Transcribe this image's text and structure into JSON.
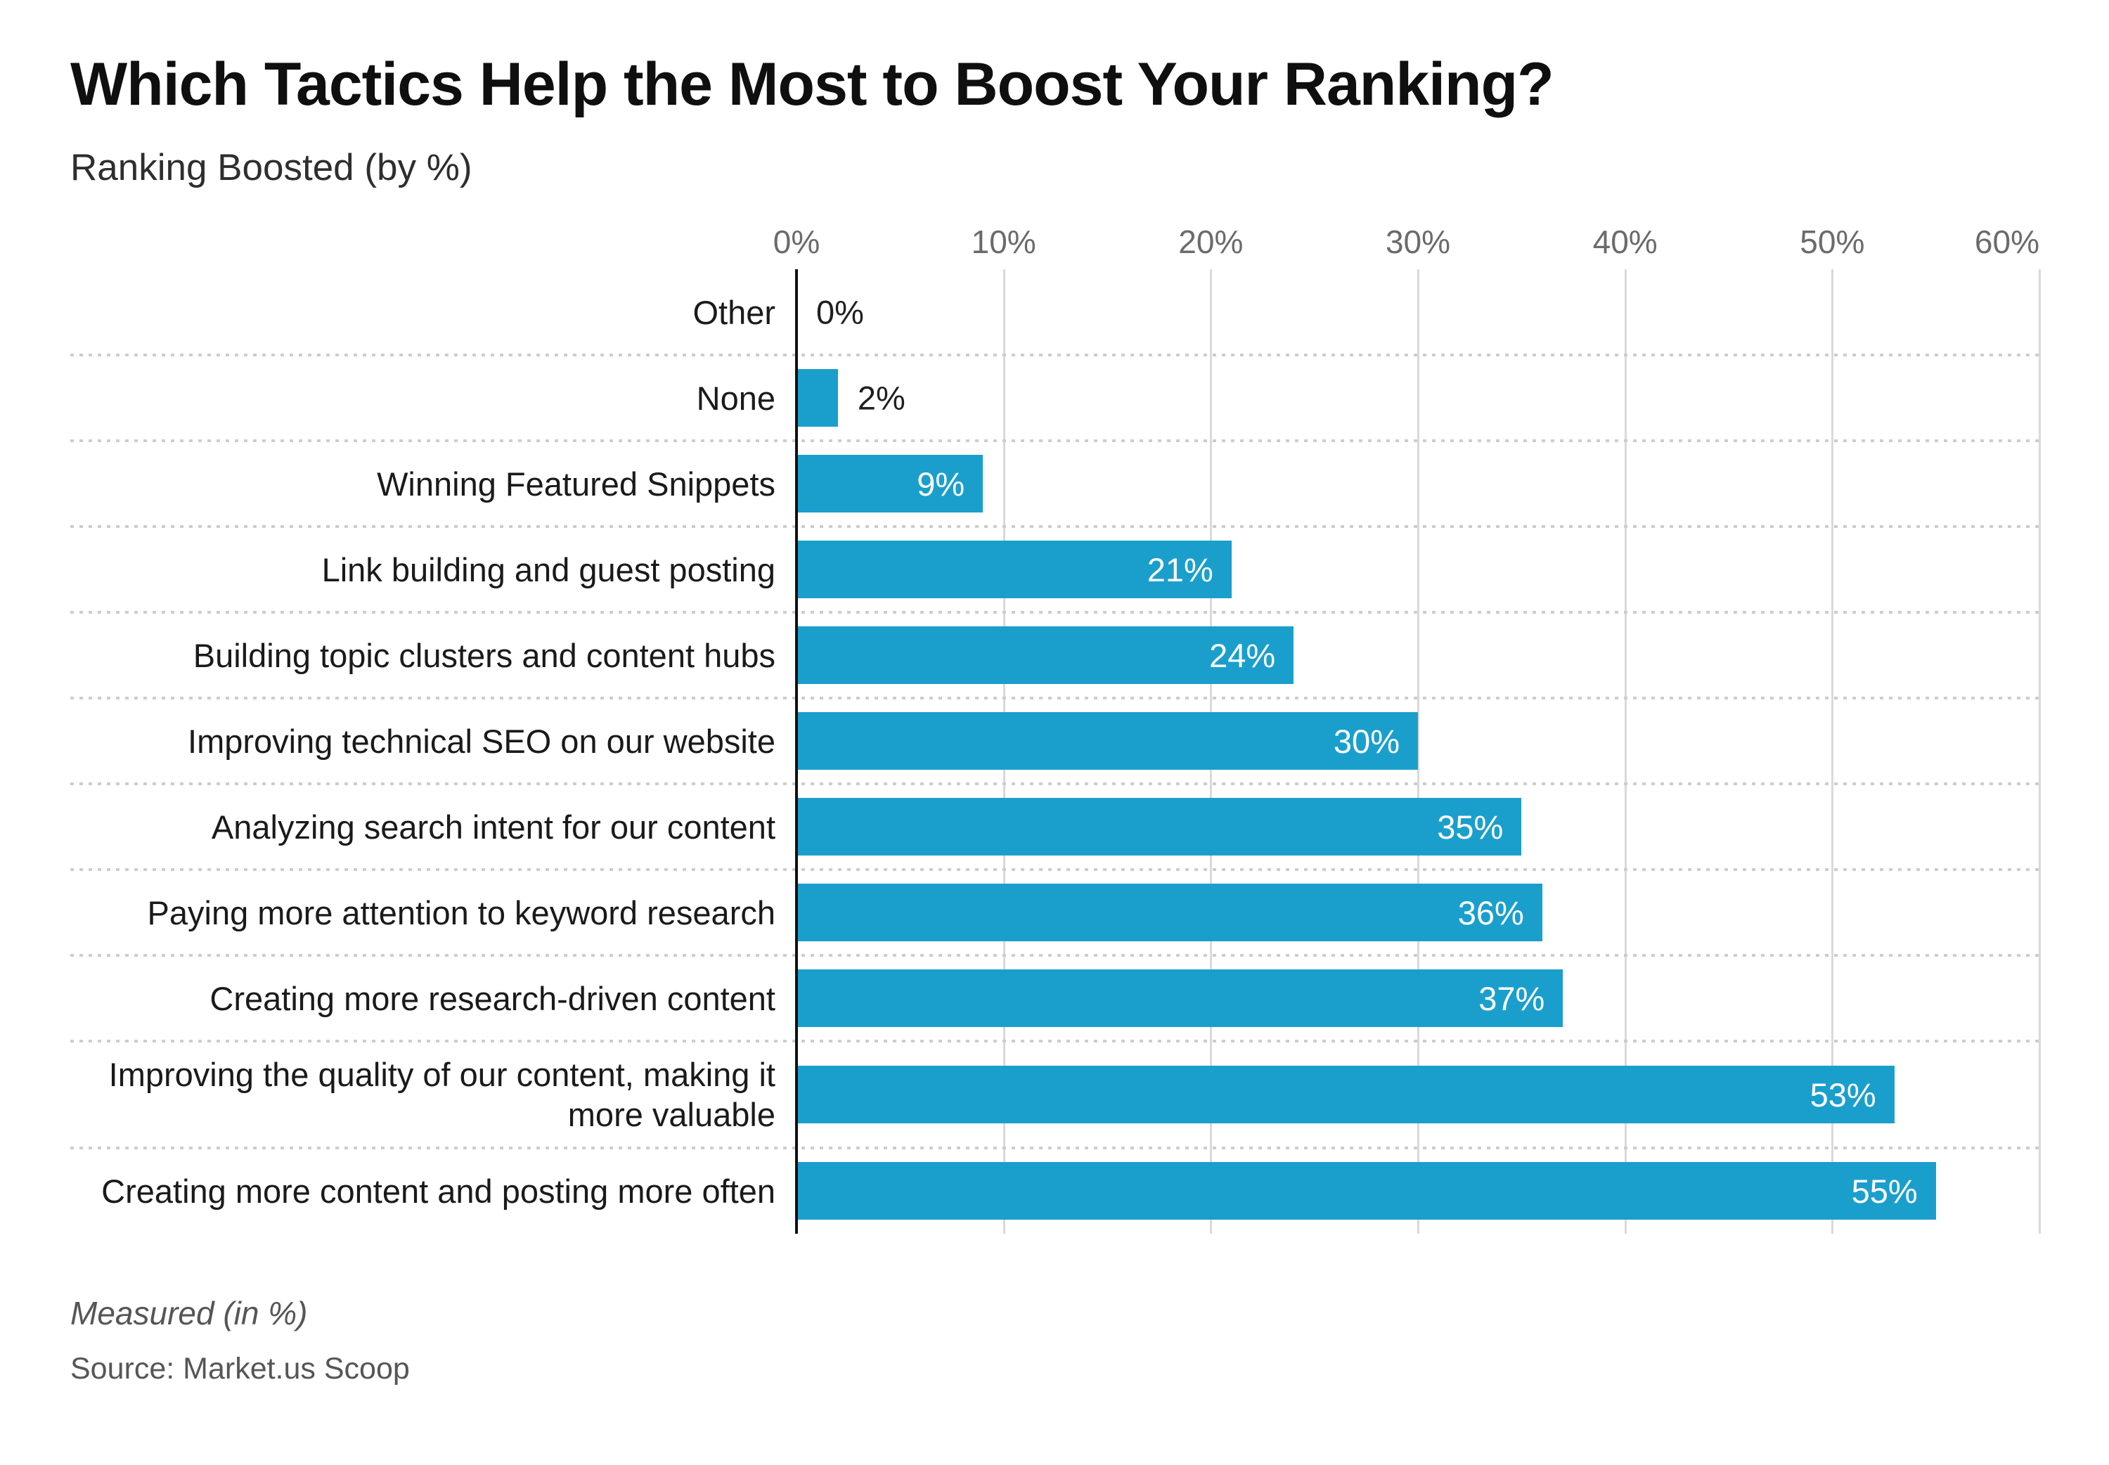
{
  "header": {
    "title": "Which Tactics Help the Most to Boost Your Ranking?",
    "subtitle": "Ranking Boosted (by %)"
  },
  "footer": {
    "note": "Measured (in %)",
    "source": "Source: Market.us Scoop"
  },
  "colors": {
    "background": "#FFFFFF",
    "bar": "#1A9FCD",
    "axis": "#111111",
    "gridline": "#D9D9D9",
    "separator": "#CDCDCD",
    "title": "#0F0F0F",
    "subtitle_text": "#2E2E2E",
    "tick_label": "#6B6B6B",
    "category_label": "#1A1A1A",
    "value_label_inside": "#FFFFFF",
    "value_label_outside": "#1F1F1F",
    "footer_text": "#565656"
  },
  "chart_data": {
    "type": "bar",
    "orientation": "horizontal",
    "title": "Which Tactics Help the Most to Boost Your Ranking?",
    "subtitle": "Ranking Boosted (by %)",
    "categories": [
      "Other",
      "None",
      "Winning Featured Snippets",
      "Link building and guest posting",
      "Building topic clusters and content hubs",
      "Improving technical SEO on our website",
      "Analyzing search intent for our content",
      "Paying more attention to keyword research",
      "Creating more research-driven content",
      "Improving the quality of our content, making it more valuable",
      "Creating more content and posting more often"
    ],
    "values": [
      0,
      2,
      9,
      21,
      24,
      30,
      35,
      36,
      37,
      53,
      55
    ],
    "value_labels": [
      "0%",
      "2%",
      "9%",
      "21%",
      "24%",
      "30%",
      "35%",
      "36%",
      "37%",
      "53%",
      "55%"
    ],
    "x_ticks": [
      {
        "value": 0,
        "label": "0%"
      },
      {
        "value": 10,
        "label": "10%"
      },
      {
        "value": 20,
        "label": "20%"
      },
      {
        "value": 30,
        "label": "30%"
      },
      {
        "value": 40,
        "label": "40%"
      },
      {
        "value": 50,
        "label": "50%"
      },
      {
        "value": 60,
        "label": "60%"
      }
    ],
    "xlim": [
      0,
      60
    ],
    "grid": "vertical",
    "row_separators": "dotted",
    "legend": "none"
  }
}
